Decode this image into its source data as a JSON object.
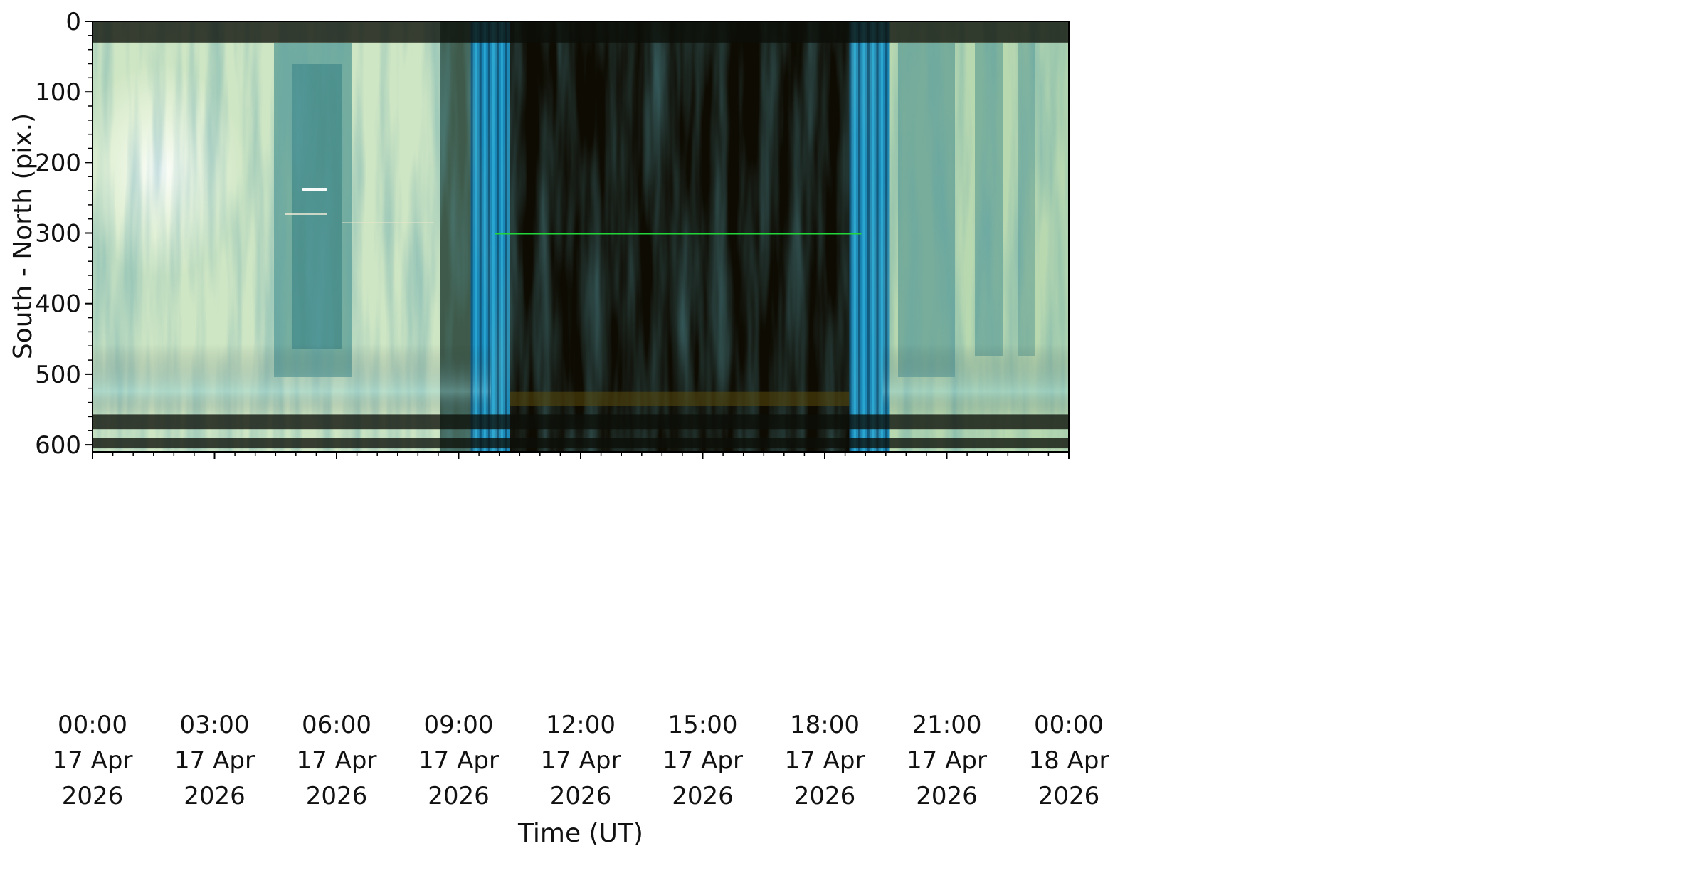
{
  "chart_data": {
    "type": "heatmap",
    "title": "",
    "xlabel": "Time (UT)",
    "ylabel": "South - North (pix.)",
    "y_inverted": true,
    "xlim_hours": [
      0,
      24
    ],
    "ylim": [
      610,
      0
    ],
    "x_ticks": [
      {
        "hour": 0,
        "time": "00:00",
        "date": "17 Apr",
        "year": "2026"
      },
      {
        "hour": 3,
        "time": "03:00",
        "date": "17 Apr",
        "year": "2026"
      },
      {
        "hour": 6,
        "time": "06:00",
        "date": "17 Apr",
        "year": "2026"
      },
      {
        "hour": 9,
        "time": "09:00",
        "date": "17 Apr",
        "year": "2026"
      },
      {
        "hour": 12,
        "time": "12:00",
        "date": "17 Apr",
        "year": "2026"
      },
      {
        "hour": 15,
        "time": "15:00",
        "date": "17 Apr",
        "year": "2026"
      },
      {
        "hour": 18,
        "time": "18:00",
        "date": "17 Apr",
        "year": "2026"
      },
      {
        "hour": 21,
        "time": "21:00",
        "date": "17 Apr",
        "year": "2026"
      },
      {
        "hour": 24,
        "time": "00:00",
        "date": "18 Apr",
        "year": "2026"
      }
    ],
    "y_ticks": [
      "0",
      "100",
      "200",
      "300",
      "400",
      "500",
      "600"
    ],
    "image_segments": [
      {
        "start_hour": 0.0,
        "end_hour": 8.55,
        "appearance": "bright sky / clouds",
        "color": "#cfe6c4"
      },
      {
        "start_hour": 8.55,
        "end_hour": 9.3,
        "appearance": "twilight",
        "color": "#3f5a4a"
      },
      {
        "start_hour": 9.3,
        "end_hour": 10.25,
        "appearance": "blue twilight bands",
        "color": "#1a88b8"
      },
      {
        "start_hour": 10.25,
        "end_hour": 18.6,
        "appearance": "dark night",
        "color": "#0e0b02"
      },
      {
        "start_hour": 18.6,
        "end_hour": 19.6,
        "appearance": "blue twilight bands",
        "color": "#1a88b8"
      },
      {
        "start_hour": 19.6,
        "end_hour": 24.0,
        "appearance": "bright sky / clouds",
        "color": "#b8d8b0"
      }
    ],
    "features": [
      {
        "kind": "horizontal line",
        "y": 301,
        "start_hour": 9.9,
        "end_hour": 18.9,
        "color": "#22d63a"
      },
      {
        "kind": "dark band",
        "y_range": [
          0,
          30
        ]
      },
      {
        "kind": "dark band",
        "y_range": [
          557,
          578
        ]
      },
      {
        "kind": "dark band",
        "y_range": [
          590,
          605
        ]
      },
      {
        "kind": "glow band",
        "y_range": [
          525,
          545
        ],
        "start_hour": 10.25,
        "end_hour": 18.6,
        "color": "#5a4a0c"
      }
    ]
  }
}
